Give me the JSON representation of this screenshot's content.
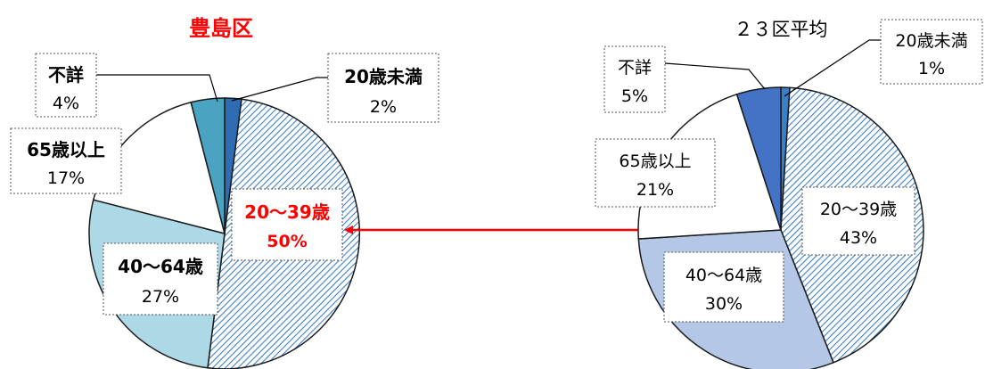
{
  "chart_data": [
    {
      "type": "pie",
      "title": "豊島区",
      "categories": [
        "20歳未満",
        "20～39歳",
        "40～64歳",
        "65歳以上",
        "不詳"
      ],
      "values": [
        2,
        50,
        27,
        17,
        4
      ],
      "value_labels": [
        "2%",
        "50%",
        "27%",
        "17%",
        "4%"
      ],
      "colors": [
        "#2e6db4",
        "hatch-light-blue",
        "#add8e6",
        "#ffffff",
        "#4aa3c0"
      ],
      "highlight_category": "20～39歳",
      "highlight_color": "#ff0000",
      "title_color": "#ff0000"
    },
    {
      "type": "pie",
      "title": "２３区平均",
      "categories": [
        "20歳未満",
        "20～39歳",
        "40～64歳",
        "65歳以上",
        "不詳"
      ],
      "values": [
        1,
        43,
        30,
        21,
        5
      ],
      "value_labels": [
        "1%",
        "43%",
        "30%",
        "21%",
        "5%"
      ],
      "colors": [
        "#3a7fc9",
        "hatch-light-blue",
        "#b4c7e7",
        "#ffffff",
        "#4472c4"
      ]
    }
  ]
}
